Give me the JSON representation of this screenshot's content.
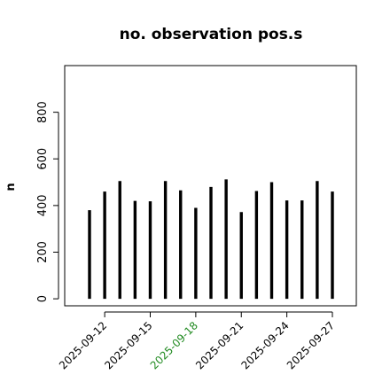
{
  "chart_data": {
    "type": "bar",
    "title": "no. observation pos.s",
    "xlabel": "",
    "ylabel": "n",
    "ylim": [
      -30,
      1000
    ],
    "yticks": [
      0,
      200,
      400,
      600,
      800
    ],
    "x": [
      "2025-09-11",
      "2025-09-12",
      "2025-09-13",
      "2025-09-14",
      "2025-09-15",
      "2025-09-16",
      "2025-09-17",
      "2025-09-18",
      "2025-09-19",
      "2025-09-20",
      "2025-09-21",
      "2025-09-22",
      "2025-09-23",
      "2025-09-24",
      "2025-09-25",
      "2025-09-26",
      "2025-09-27"
    ],
    "values": [
      380,
      460,
      505,
      420,
      418,
      505,
      465,
      390,
      480,
      512,
      372,
      462,
      500,
      422,
      422,
      505,
      460
    ],
    "xtick_labels": [
      {
        "label": "2025-09-12",
        "color": "#000000"
      },
      {
        "label": "2025-09-15",
        "color": "#000000"
      },
      {
        "label": "2025-09-18",
        "color": "#228B22"
      },
      {
        "label": "2025-09-21",
        "color": "#000000"
      },
      {
        "label": "2025-09-24",
        "color": "#000000"
      },
      {
        "label": "2025-09-27",
        "color": "#000000"
      }
    ],
    "bar_color": "#000000",
    "grid": false,
    "legend": "none"
  }
}
